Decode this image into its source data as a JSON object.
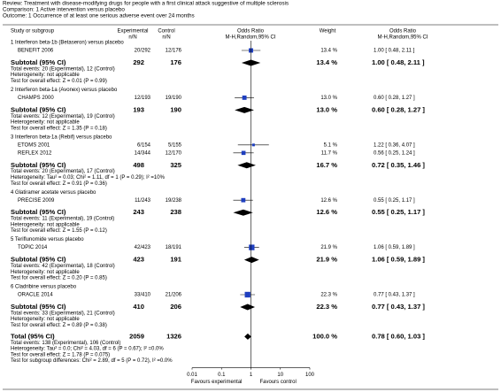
{
  "header": {
    "review": "Review: Treatment with disease-modifying drugs for people with a first clinical attack suggestive of multiple sclerosis",
    "comparison": "Comparison: 1 Active intervention versus placebo",
    "outcome": "Outcome: 1 Occurrence of at least one serious adverse event over 24 months"
  },
  "columns": {
    "study": "Study or subgroup",
    "experimental": "Experimental",
    "control": "Control",
    "nN": "n/N",
    "odds_ratio": "Odds Ratio",
    "method": "M-H,Random,95% CI",
    "weight": "Weight"
  },
  "chart_data": {
    "type": "forest",
    "xscale": "log",
    "xlim": [
      0.01,
      100
    ],
    "xticks": [
      0.01,
      0.1,
      1,
      10,
      100
    ],
    "marker_color": "#1f3fbf",
    "diamond_color": "#000000",
    "favours": [
      "Favours experimental",
      "Favours control"
    ],
    "groups": [
      {
        "title": "1 Interferon beta-1b (Betaseron) versus placebo",
        "studies": [
          {
            "name": "BENEFIT 2006",
            "experimental": "20/292",
            "control": "12/176",
            "weight": 13.4,
            "weight_label": "13.4 %",
            "or": 1.0,
            "ci": [
              0.48,
              2.11
            ],
            "label": "1.00 [ 0.48, 2.11 ]"
          }
        ],
        "subtotal": {
          "name": "Subtotal (95% CI)",
          "experimental": 292,
          "control": 176,
          "weight": 13.4,
          "weight_label": "13.4 %",
          "or": 1.0,
          "ci": [
            0.48,
            2.11
          ],
          "label": "1.00 [ 0.48, 2.11 ]"
        },
        "notes": [
          "Total events: 20 (Experimental), 12 (Control)",
          "Heterogeneity: not applicable",
          "Test for overall effect: Z = 0.01 (P = 0.99)"
        ]
      },
      {
        "title": "2 Interferon beta-1a (Avonex) versus placebo",
        "studies": [
          {
            "name": "CHAMPS 2000",
            "experimental": "12/193",
            "control": "19/190",
            "weight": 13.0,
            "weight_label": "13.0 %",
            "or": 0.6,
            "ci": [
              0.28,
              1.27
            ],
            "label": "0.60 [ 0.28, 1.27 ]"
          }
        ],
        "subtotal": {
          "name": "Subtotal (95% CI)",
          "experimental": 193,
          "control": 190,
          "weight": 13.0,
          "weight_label": "13.0 %",
          "or": 0.6,
          "ci": [
            0.28,
            1.27
          ],
          "label": "0.60 [ 0.28, 1.27 ]"
        },
        "notes": [
          "Total events: 12 (Experimental), 19 (Control)",
          "Heterogeneity: not applicable",
          "Test for overall effect: Z = 1.35 (P = 0.18)"
        ]
      },
      {
        "title": "3 Interferon beta-1a (Rebif) versus placebo",
        "studies": [
          {
            "name": "ETOMS 2001",
            "experimental": "6/154",
            "control": "5/155",
            "weight": 5.1,
            "weight_label": "5.1 %",
            "or": 1.22,
            "ci": [
              0.36,
              4.07
            ],
            "label": "1.22 [ 0.36, 4.07 ]"
          },
          {
            "name": "REFLEX 2012",
            "experimental": "14/344",
            "control": "12/170",
            "weight": 11.7,
            "weight_label": "11.7 %",
            "or": 0.56,
            "ci": [
              0.25,
              1.24
            ],
            "label": "0.56 [ 0.25, 1.24 ]"
          }
        ],
        "subtotal": {
          "name": "Subtotal (95% CI)",
          "experimental": 498,
          "control": 325,
          "weight": 16.7,
          "weight_label": "16.7 %",
          "or": 0.72,
          "ci": [
            0.35,
            1.46
          ],
          "label": "0.72 [ 0.35, 1.46 ]"
        },
        "notes": [
          "Total events: 20 (Experimental), 17 (Control)",
          "Heterogeneity: Tau² = 0.03; Chi² = 1.11, df = 1 (P = 0.29); I² =10%",
          "Test for overall effect: Z = 0.91 (P = 0.36)"
        ]
      },
      {
        "title": "4 Glatiramer acetate versus placebo",
        "studies": [
          {
            "name": "PRECISE 2009",
            "experimental": "11/243",
            "control": "19/238",
            "weight": 12.6,
            "weight_label": "12.6 %",
            "or": 0.55,
            "ci": [
              0.25,
              1.17
            ],
            "label": "0.55 [ 0.25, 1.17 ]"
          }
        ],
        "subtotal": {
          "name": "Subtotal (95% CI)",
          "experimental": 243,
          "control": 238,
          "weight": 12.6,
          "weight_label": "12.6 %",
          "or": 0.55,
          "ci": [
            0.25,
            1.17
          ],
          "label": "0.55 [ 0.25, 1.17 ]"
        },
        "notes": [
          "Total events: 11 (Experimental), 19 (Control)",
          "Heterogeneity: not applicable",
          "Test for overall effect: Z = 1.55 (P = 0.12)"
        ]
      },
      {
        "title": "5 Teriflunomide versus placebo",
        "studies": [
          {
            "name": "TOPIC 2014",
            "experimental": "42/423",
            "control": "18/191",
            "weight": 21.9,
            "weight_label": "21.9 %",
            "or": 1.06,
            "ci": [
              0.59,
              1.89
            ],
            "label": "1.06 [ 0.59, 1.89 ]"
          }
        ],
        "subtotal": {
          "name": "Subtotal (95% CI)",
          "experimental": 423,
          "control": 191,
          "weight": 21.9,
          "weight_label": "21.9 %",
          "or": 1.06,
          "ci": [
            0.59,
            1.89
          ],
          "label": "1.06 [ 0.59, 1.89 ]"
        },
        "notes": [
          "Total events: 42 (Experimental), 18 (Control)",
          "Heterogeneity: not applicable",
          "Test for overall effect: Z = 0.20 (P = 0.85)"
        ]
      },
      {
        "title": "6 Cladribine versus placebo",
        "studies": [
          {
            "name": "ORACLE 2014",
            "experimental": "33/410",
            "control": "21/206",
            "weight": 22.3,
            "weight_label": "22.3 %",
            "or": 0.77,
            "ci": [
              0.43,
              1.37
            ],
            "label": "0.77 [ 0.43, 1.37 ]"
          }
        ],
        "subtotal": {
          "name": "Subtotal (95% CI)",
          "experimental": 410,
          "control": 206,
          "weight": 22.3,
          "weight_label": "22.3 %",
          "or": 0.77,
          "ci": [
            0.43,
            1.37
          ],
          "label": "0.77 [ 0.43, 1.37 ]"
        },
        "notes": [
          "Total events: 33 (Experimental), 21 (Control)",
          "Heterogeneity: not applicable",
          "Test for overall effect: Z = 0.89 (P = 0.38)"
        ]
      }
    ],
    "total": {
      "name": "Total (95% CI)",
      "experimental": 2059,
      "control": 1326,
      "weight": 100.0,
      "weight_label": "100.0 %",
      "or": 0.78,
      "ci": [
        0.6,
        1.03
      ],
      "label": "0.78 [ 0.60, 1.03 ]",
      "notes": [
        "Total events: 138 (Experimental), 106 (Control)",
        "Heterogeneity: Tau² = 0.0; Chi² = 4.03, df = 6 (P = 0.67); I² =0.0%",
        "Test for overall effect: Z = 1.78 (P = 0.075)",
        "Test for subgroup differences: Chi² = 2.89, df = 5 (P = 0.72), I² =0.0%"
      ]
    }
  }
}
